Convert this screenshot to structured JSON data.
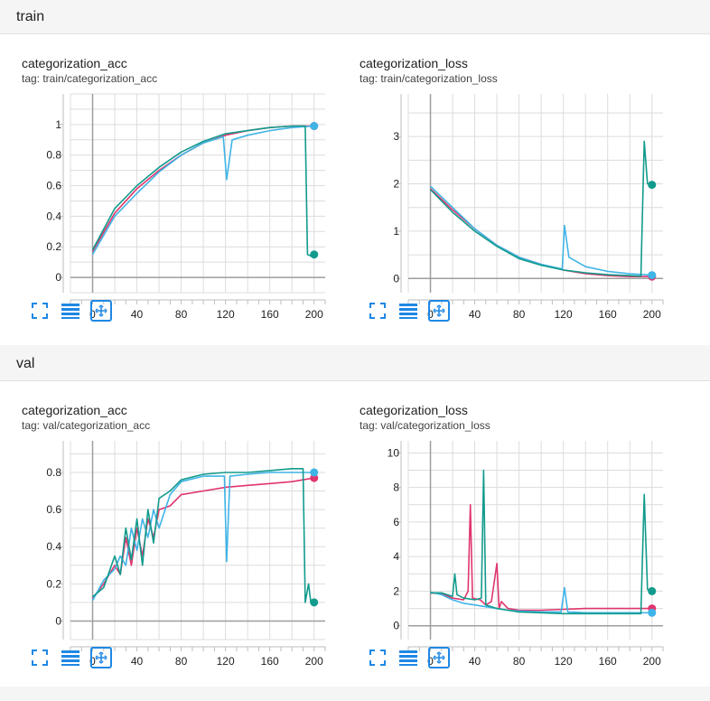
{
  "colors": {
    "teal": "#129b8c",
    "pink": "#e0356d",
    "blue": "#3fb4e6",
    "accent": "#1e88e5"
  },
  "sections": [
    {
      "title": "train",
      "cards": [
        {
          "title": "categorization_acc",
          "tag": "tag: train/categorization_acc",
          "chart_data": {
            "type": "line",
            "xlabel": "",
            "ylabel": "",
            "xlim": [
              -20,
              210
            ],
            "ylim": [
              -0.1,
              1.2
            ],
            "xticks": [
              0,
              40,
              80,
              120,
              160,
              200
            ],
            "yticks": [
              0,
              0.2,
              0.4,
              0.6,
              0.8,
              1
            ],
            "ytick_labels": [
              "0",
              "0.2",
              "0.4",
              "0.6",
              "0.8",
              "1"
            ],
            "grid": true,
            "series": [
              {
                "color": "#e0356d",
                "x": [
                  0,
                  20,
                  40,
                  60,
                  80,
                  100,
                  120,
                  140,
                  160,
                  180,
                  200
                ],
                "y": [
                  0.17,
                  0.42,
                  0.58,
                  0.7,
                  0.8,
                  0.88,
                  0.93,
                  0.96,
                  0.98,
                  0.99,
                  0.99
                ]
              },
              {
                "color": "#3fb4e6",
                "x": [
                  0,
                  20,
                  40,
                  60,
                  80,
                  100,
                  118,
                  121,
                  126,
                  140,
                  160,
                  180,
                  200
                ],
                "y": [
                  0.15,
                  0.4,
                  0.55,
                  0.69,
                  0.8,
                  0.88,
                  0.92,
                  0.64,
                  0.9,
                  0.93,
                  0.96,
                  0.98,
                  0.99
                ]
              },
              {
                "color": "#129b8c",
                "x": [
                  0,
                  20,
                  40,
                  60,
                  80,
                  100,
                  120,
                  140,
                  160,
                  180,
                  192,
                  194,
                  197,
                  200
                ],
                "y": [
                  0.18,
                  0.45,
                  0.6,
                  0.72,
                  0.82,
                  0.89,
                  0.94,
                  0.96,
                  0.98,
                  0.99,
                  0.99,
                  0.15,
                  0.14,
                  0.15
                ]
              }
            ]
          }
        },
        {
          "title": "categorization_loss",
          "tag": "tag: train/categorization_loss",
          "chart_data": {
            "type": "line",
            "xlabel": "",
            "ylabel": "",
            "xlim": [
              -20,
              210
            ],
            "ylim": [
              -0.3,
              3.9
            ],
            "xticks": [
              0,
              40,
              80,
              120,
              160,
              200
            ],
            "yticks": [
              0,
              1,
              2,
              3
            ],
            "ytick_labels": [
              "0",
              "1",
              "2",
              "3"
            ],
            "grid": true,
            "series": [
              {
                "color": "#e0356d",
                "x": [
                  0,
                  20,
                  40,
                  60,
                  80,
                  100,
                  120,
                  140,
                  160,
                  180,
                  200
                ],
                "y": [
                  1.9,
                  1.45,
                  1.05,
                  0.7,
                  0.45,
                  0.3,
                  0.18,
                  0.1,
                  0.06,
                  0.04,
                  0.04
                ]
              },
              {
                "color": "#3fb4e6",
                "x": [
                  0,
                  20,
                  40,
                  60,
                  80,
                  100,
                  119,
                  121,
                  125,
                  140,
                  160,
                  180,
                  200
                ],
                "y": [
                  1.95,
                  1.5,
                  1.05,
                  0.7,
                  0.45,
                  0.3,
                  0.2,
                  1.12,
                  0.45,
                  0.25,
                  0.15,
                  0.1,
                  0.07
                ]
              },
              {
                "color": "#129b8c",
                "x": [
                  0,
                  20,
                  40,
                  60,
                  80,
                  100,
                  120,
                  140,
                  160,
                  180,
                  190,
                  193,
                  196,
                  200
                ],
                "y": [
                  1.88,
                  1.4,
                  1.0,
                  0.68,
                  0.42,
                  0.28,
                  0.18,
                  0.12,
                  0.08,
                  0.06,
                  0.05,
                  2.9,
                  2.0,
                  1.98
                ]
              }
            ]
          }
        }
      ]
    },
    {
      "title": "val",
      "cards": [
        {
          "title": "categorization_acc",
          "tag": "tag: val/categorization_acc",
          "chart_data": {
            "type": "line",
            "xlabel": "",
            "ylabel": "",
            "xlim": [
              -20,
              210
            ],
            "ylim": [
              -0.1,
              0.97
            ],
            "xticks": [
              0,
              40,
              80,
              120,
              160,
              200
            ],
            "yticks": [
              0,
              0.2,
              0.4,
              0.6,
              0.8
            ],
            "ytick_labels": [
              "0",
              "0.2",
              "0.4",
              "0.6",
              "0.8"
            ],
            "grid": true,
            "series": [
              {
                "color": "#e0356d",
                "x": [
                  0,
                  10,
                  20,
                  25,
                  30,
                  35,
                  40,
                  45,
                  50,
                  55,
                  60,
                  70,
                  80,
                  100,
                  120,
                  140,
                  160,
                  180,
                  200
                ],
                "y": [
                  0.12,
                  0.2,
                  0.3,
                  0.25,
                  0.45,
                  0.3,
                  0.5,
                  0.35,
                  0.55,
                  0.45,
                  0.6,
                  0.62,
                  0.68,
                  0.7,
                  0.72,
                  0.73,
                  0.74,
                  0.75,
                  0.77
                ]
              },
              {
                "color": "#3fb4e6",
                "x": [
                  0,
                  10,
                  20,
                  25,
                  30,
                  35,
                  40,
                  45,
                  50,
                  55,
                  60,
                  70,
                  80,
                  100,
                  119,
                  121,
                  124,
                  140,
                  160,
                  180,
                  200
                ],
                "y": [
                  0.11,
                  0.22,
                  0.28,
                  0.35,
                  0.3,
                  0.5,
                  0.38,
                  0.55,
                  0.45,
                  0.6,
                  0.5,
                  0.68,
                  0.75,
                  0.78,
                  0.78,
                  0.32,
                  0.78,
                  0.79,
                  0.8,
                  0.8,
                  0.8
                ]
              },
              {
                "color": "#129b8c",
                "x": [
                  0,
                  10,
                  20,
                  25,
                  30,
                  35,
                  40,
                  45,
                  50,
                  55,
                  60,
                  70,
                  80,
                  100,
                  120,
                  140,
                  160,
                  180,
                  190,
                  192,
                  195,
                  197,
                  200
                ],
                "y": [
                  0.13,
                  0.18,
                  0.35,
                  0.25,
                  0.5,
                  0.33,
                  0.55,
                  0.3,
                  0.6,
                  0.42,
                  0.66,
                  0.7,
                  0.76,
                  0.79,
                  0.8,
                  0.8,
                  0.81,
                  0.82,
                  0.82,
                  0.1,
                  0.2,
                  0.1,
                  0.1
                ]
              }
            ]
          }
        },
        {
          "title": "categorization_loss",
          "tag": "tag: val/categorization_loss",
          "chart_data": {
            "type": "line",
            "xlabel": "",
            "ylabel": "",
            "xlim": [
              -20,
              210
            ],
            "ylim": [
              -0.8,
              10.7
            ],
            "xticks": [
              0,
              40,
              80,
              120,
              160,
              200
            ],
            "yticks": [
              0,
              2,
              4,
              6,
              8,
              10
            ],
            "ytick_labels": [
              "0",
              "2",
              "4",
              "6",
              "8",
              "10"
            ],
            "grid": true,
            "series": [
              {
                "color": "#e0356d",
                "x": [
                  0,
                  10,
                  20,
                  30,
                  34,
                  36,
                  38,
                  45,
                  50,
                  55,
                  60,
                  62,
                  64,
                  70,
                  80,
                  100,
                  120,
                  140,
                  160,
                  180,
                  200
                ],
                "y": [
                  1.9,
                  1.85,
                  1.6,
                  1.5,
                  2.0,
                  7.0,
                  1.6,
                  1.5,
                  1.2,
                  1.4,
                  3.6,
                  1.0,
                  1.4,
                  1.0,
                  0.9,
                  0.9,
                  0.95,
                  1.0,
                  1.0,
                  1.0,
                  1.0
                ]
              },
              {
                "color": "#3fb4e6",
                "x": [
                  0,
                  10,
                  20,
                  30,
                  40,
                  50,
                  60,
                  70,
                  80,
                  100,
                  118,
                  121,
                  124,
                  140,
                  160,
                  180,
                  200
                ],
                "y": [
                  1.95,
                  1.8,
                  1.5,
                  1.3,
                  1.2,
                  1.1,
                  1.0,
                  0.9,
                  0.85,
                  0.8,
                  0.8,
                  2.2,
                  0.8,
                  0.75,
                  0.75,
                  0.75,
                  0.75
                ]
              },
              {
                "color": "#129b8c",
                "x": [
                  0,
                  10,
                  20,
                  22,
                  24,
                  30,
                  40,
                  46,
                  48,
                  50,
                  60,
                  70,
                  80,
                  100,
                  120,
                  140,
                  160,
                  180,
                  190,
                  193,
                  196,
                  200
                ],
                "y": [
                  1.9,
                  1.9,
                  1.7,
                  3.0,
                  1.8,
                  1.6,
                  1.5,
                  1.6,
                  9.0,
                  1.2,
                  1.0,
                  0.9,
                  0.8,
                  0.75,
                  0.7,
                  0.7,
                  0.7,
                  0.7,
                  0.7,
                  7.6,
                  2.1,
                  2.0
                ]
              }
            ]
          }
        }
      ]
    }
  ],
  "toolbar": {
    "icons": [
      "fullscreen-icon",
      "list-icon",
      "fit-domain-icon"
    ]
  }
}
